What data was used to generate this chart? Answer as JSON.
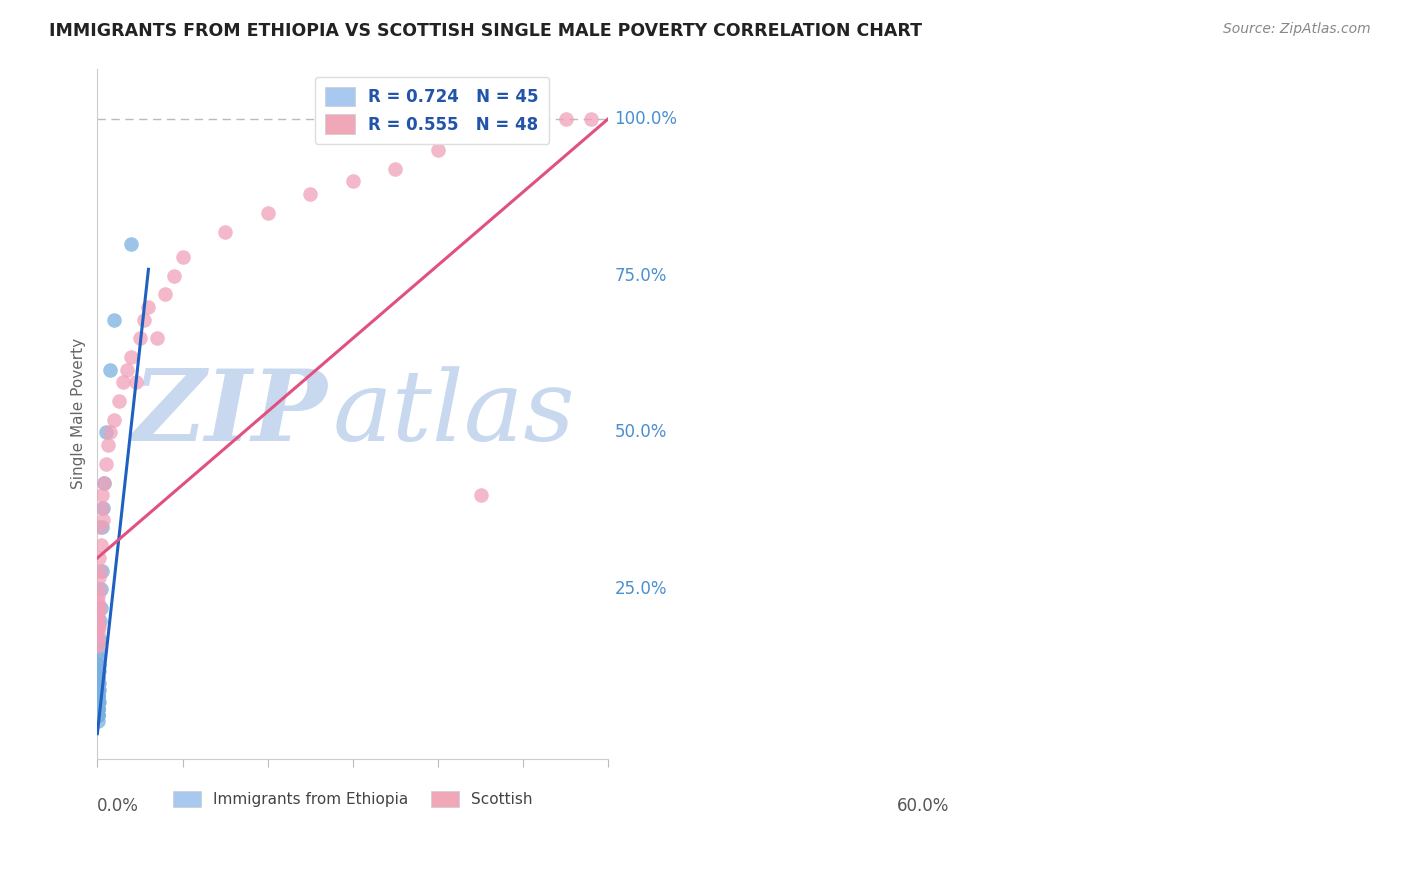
{
  "title": "IMMIGRANTS FROM ETHIOPIA VS SCOTTISH SINGLE MALE POVERTY CORRELATION CHART",
  "source": "Source: ZipAtlas.com",
  "ylabel": "Single Male Poverty",
  "yticks_labels": [
    "100.0%",
    "75.0%",
    "50.0%",
    "25.0%"
  ],
  "ytick_vals": [
    1.0,
    0.75,
    0.5,
    0.25
  ],
  "xlim": [
    0.0,
    0.6
  ],
  "ylim": [
    -0.02,
    1.08
  ],
  "legend_blue_label": "R = 0.724   N = 45",
  "legend_pink_label": "R = 0.555   N = 48",
  "legend_blue_color": "#a8c8f0",
  "legend_pink_color": "#f0a8b8",
  "scatter_blue_color": "#7ab0e0",
  "scatter_pink_color": "#f0a0b8",
  "line_blue_color": "#2060c0",
  "line_pink_color": "#e05080",
  "watermark_zip": "ZIP",
  "watermark_atlas": "atlas",
  "watermark_color": "#c8d8ee",
  "bottom_legend_blue": "Immigrants from Ethiopia",
  "bottom_legend_pink": "Scottish",
  "grid_color": "#d8d8d8",
  "background_color": "#ffffff",
  "blue_scatter_x": [
    0.0002,
    0.0003,
    0.0003,
    0.0004,
    0.0004,
    0.0005,
    0.0005,
    0.0005,
    0.0006,
    0.0006,
    0.0007,
    0.0007,
    0.0007,
    0.0008,
    0.0008,
    0.0008,
    0.0009,
    0.0009,
    0.001,
    0.001,
    0.001,
    0.001,
    0.0012,
    0.0012,
    0.0013,
    0.0013,
    0.0014,
    0.0015,
    0.0015,
    0.0016,
    0.002,
    0.002,
    0.0025,
    0.003,
    0.003,
    0.004,
    0.004,
    0.005,
    0.006,
    0.007,
    0.008,
    0.01,
    0.015,
    0.02,
    0.04
  ],
  "blue_scatter_y": [
    0.05,
    0.06,
    0.07,
    0.04,
    0.08,
    0.05,
    0.07,
    0.09,
    0.06,
    0.08,
    0.05,
    0.07,
    0.1,
    0.06,
    0.09,
    0.11,
    0.07,
    0.1,
    0.06,
    0.08,
    0.11,
    0.13,
    0.09,
    0.12,
    0.08,
    0.11,
    0.1,
    0.07,
    0.12,
    0.09,
    0.13,
    0.15,
    0.14,
    0.17,
    0.2,
    0.22,
    0.25,
    0.28,
    0.35,
    0.38,
    0.42,
    0.5,
    0.6,
    0.68,
    0.8
  ],
  "pink_scatter_x": [
    0.0002,
    0.0003,
    0.0004,
    0.0005,
    0.0006,
    0.0007,
    0.0008,
    0.0009,
    0.001,
    0.0012,
    0.0014,
    0.0015,
    0.0017,
    0.002,
    0.002,
    0.003,
    0.003,
    0.004,
    0.005,
    0.006,
    0.007,
    0.008,
    0.01,
    0.012,
    0.015,
    0.02,
    0.025,
    0.03,
    0.035,
    0.04,
    0.045,
    0.05,
    0.055,
    0.06,
    0.07,
    0.08,
    0.09,
    0.1,
    0.15,
    0.2,
    0.25,
    0.3,
    0.35,
    0.4,
    0.45,
    0.5,
    0.55,
    0.58
  ],
  "pink_scatter_y": [
    0.18,
    0.2,
    0.16,
    0.22,
    0.19,
    0.21,
    0.17,
    0.23,
    0.2,
    0.24,
    0.22,
    0.25,
    0.27,
    0.19,
    0.3,
    0.28,
    0.35,
    0.32,
    0.38,
    0.4,
    0.36,
    0.42,
    0.45,
    0.48,
    0.5,
    0.52,
    0.55,
    0.58,
    0.6,
    0.62,
    0.58,
    0.65,
    0.68,
    0.7,
    0.65,
    0.72,
    0.75,
    0.78,
    0.82,
    0.85,
    0.88,
    0.9,
    0.92,
    0.95,
    0.4,
    0.98,
    1.0,
    1.0
  ],
  "blue_line_x": [
    0.0,
    0.06
  ],
  "blue_line_y": [
    0.02,
    0.76
  ],
  "pink_line_x": [
    0.0,
    0.6
  ],
  "pink_line_y": [
    0.3,
    1.0
  ],
  "dashed_line_y": 1.0
}
